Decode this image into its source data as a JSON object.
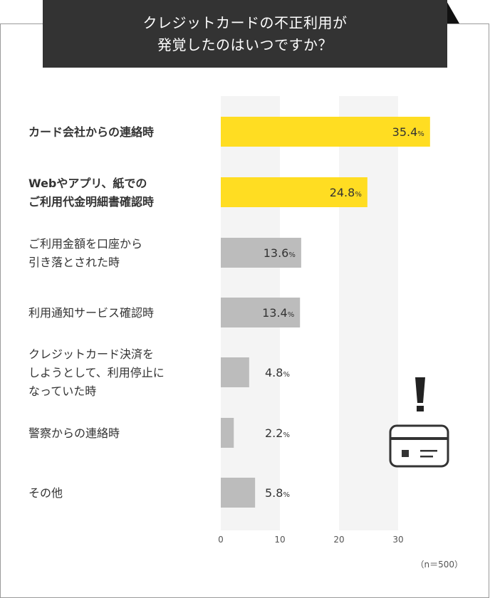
{
  "title": {
    "line1": "クレジットカードの不正利用が",
    "line2": "発覚したのはいつですか？"
  },
  "chart_data": {
    "type": "bar",
    "orientation": "horizontal",
    "title": "クレジットカードの不正利用が発覚したのはいつですか？",
    "categories": [
      [
        "カード会社からの連絡時"
      ],
      [
        "Webやアプリ、紙での",
        "ご利用代金明細書確認時"
      ],
      [
        "ご利用金額を口座から",
        "引き落とされた時"
      ],
      [
        "利用通知サービス確認時"
      ],
      [
        "クレジットカード決済を",
        "しようとして、利用停止に",
        "なっていた時"
      ],
      [
        "警察からの連絡時"
      ],
      [
        "その他"
      ]
    ],
    "values": [
      35.4,
      24.8,
      13.6,
      13.4,
      4.8,
      2.2,
      5.8
    ],
    "value_labels": [
      "35.4",
      "24.8",
      "13.6",
      "13.4",
      "4.8",
      "2.2",
      "5.8"
    ],
    "unit": "%",
    "highlight": [
      true,
      true,
      false,
      false,
      false,
      false,
      false
    ],
    "xlim": [
      0,
      30
    ],
    "xticks": [
      "0",
      "10",
      "20",
      "30"
    ],
    "note": "（n＝500）"
  },
  "colors": {
    "highlight": "#ffdd22",
    "normal": "#bcbcbc",
    "band": "#f4f4f4",
    "title_bg": "#333333"
  }
}
